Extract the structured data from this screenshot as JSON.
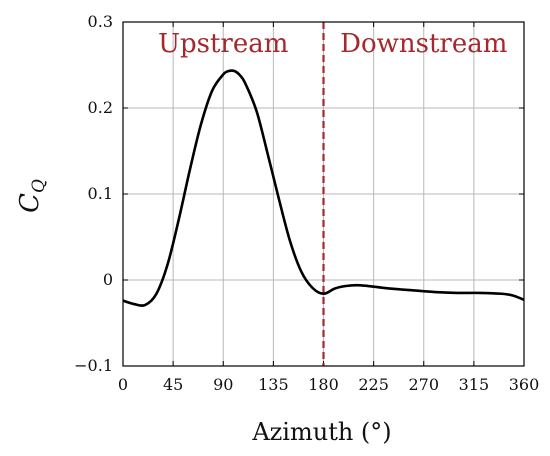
{
  "chart_data": {
    "type": "line",
    "xlabel": "Azimuth (°)",
    "ylabel": "C",
    "ylabel_subscript": "Q",
    "xlim": [
      0,
      360
    ],
    "ylim": [
      -0.1,
      0.3
    ],
    "xticks": [
      0,
      45,
      90,
      135,
      180,
      225,
      270,
      315,
      360
    ],
    "yticks": [
      -0.1,
      0,
      0.1,
      0.2,
      0.3
    ],
    "ytick_labels": [
      "−0.1",
      "0",
      "0.1",
      "0.2",
      "0.3"
    ],
    "grid": true,
    "line_color": "#000000",
    "annotation_color": "#a4282c",
    "divider_x": 180,
    "annotations": [
      {
        "text": "Upstream",
        "x": 90
      },
      {
        "text": "Downstream",
        "x": 270
      }
    ],
    "series": [
      {
        "x": [
          0,
          10,
          20,
          30,
          40,
          50,
          60,
          70,
          80,
          90,
          95,
          100,
          105,
          110,
          120,
          130,
          140,
          150,
          160,
          170,
          180,
          190,
          200,
          210,
          220,
          240,
          260,
          280,
          300,
          320,
          340,
          350,
          360
        ],
        "y": [
          -0.024,
          -0.028,
          -0.029,
          -0.016,
          0.018,
          0.07,
          0.128,
          0.181,
          0.22,
          0.239,
          0.243,
          0.243,
          0.238,
          0.228,
          0.196,
          0.146,
          0.094,
          0.045,
          0.01,
          -0.009,
          -0.016,
          -0.01,
          -0.007,
          -0.006,
          -0.007,
          -0.01,
          -0.012,
          -0.014,
          -0.015,
          -0.015,
          -0.016,
          -0.018,
          -0.023
        ]
      }
    ]
  }
}
